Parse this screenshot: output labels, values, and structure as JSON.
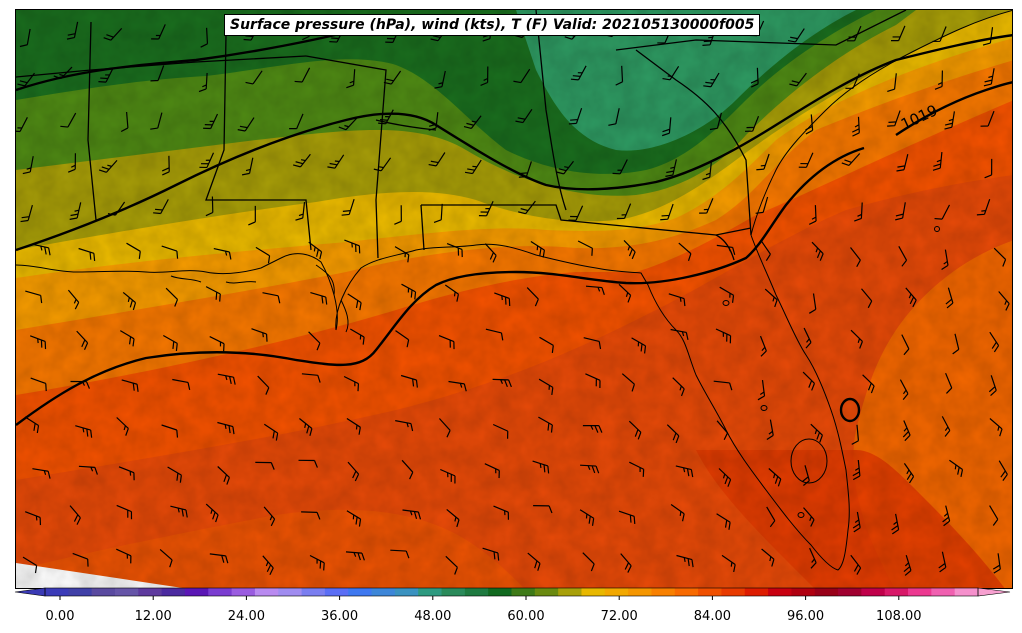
{
  "title": "Surface pressure (hPa), wind (kts), T (F) Valid: 202105130000f005",
  "isobar_label": "1019",
  "colorbar": {
    "tick_labels": [
      "0.00",
      "12.00",
      "24.00",
      "36.00",
      "48.00",
      "60.00",
      "72.00",
      "84.00",
      "96.00",
      "108.00"
    ],
    "colors": [
      "#3b3bb8",
      "#4040a8",
      "#5a4aa0",
      "#6655a8",
      "#5e3a9e",
      "#4b2aa0",
      "#5a16b5",
      "#7a3cd0",
      "#9a5ce0",
      "#b98af0",
      "#a08cf0",
      "#7a7ef0",
      "#5a6ef5",
      "#3e78f0",
      "#3d86d8",
      "#3a92c0",
      "#2e9a80",
      "#2a8a5a",
      "#1e7a40",
      "#116a20",
      "#3e7a18",
      "#6a8a10",
      "#a8a00a",
      "#e8b800",
      "#f2a800",
      "#f59600",
      "#f88000",
      "#f86a00",
      "#f05000",
      "#e83a00",
      "#dd1c00",
      "#c80010",
      "#b00010",
      "#980018",
      "#a00030",
      "#c0004a",
      "#d81868",
      "#ec3890",
      "#f060b0",
      "#f590cc"
    ]
  },
  "legend": {
    "temperature": "T (F)",
    "pressure": "hPa",
    "wind": "kts"
  }
}
